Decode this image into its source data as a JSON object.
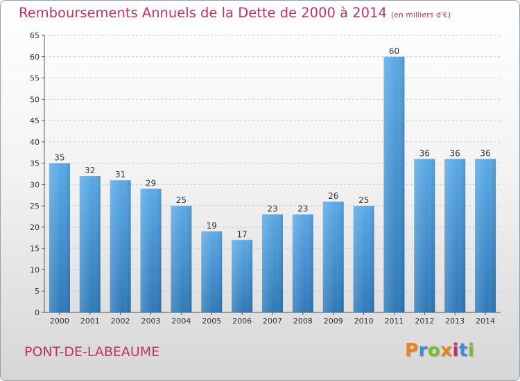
{
  "chart_data": {
    "type": "bar",
    "title": "Remboursements Annuels de la Dette de 2000 à 2014",
    "subtitle": "(en milliers d'€)",
    "categories": [
      "2000",
      "2001",
      "2002",
      "2003",
      "2004",
      "2005",
      "2006",
      "2007",
      "2008",
      "2009",
      "2010",
      "2011",
      "2012",
      "2013",
      "2014"
    ],
    "values": [
      35,
      32,
      31,
      29,
      25,
      19,
      17,
      23,
      23,
      26,
      25,
      60,
      36,
      36,
      36
    ],
    "ylim": [
      0,
      65
    ],
    "yticks": [
      0,
      5,
      10,
      15,
      20,
      25,
      30,
      35,
      40,
      45,
      50,
      55,
      60,
      65
    ],
    "xlabel": "",
    "ylabel": "",
    "grid": "horizontal dashed",
    "bar_color_top": "#5aa9e6",
    "bar_color_bottom": "#2f79b8"
  },
  "footer": {
    "commune": "PONT-DE-LABEAUME",
    "logo_letters": [
      "P",
      "r",
      "o",
      "x",
      "i",
      "t",
      "i"
    ],
    "logo_colors": [
      "#e8841a",
      "#3a8fd0",
      "#7cb82f",
      "#e8841a",
      "#c0306a",
      "#3a8fd0",
      "#7cb82f"
    ]
  },
  "colors": {
    "accent": "#c0306a"
  }
}
